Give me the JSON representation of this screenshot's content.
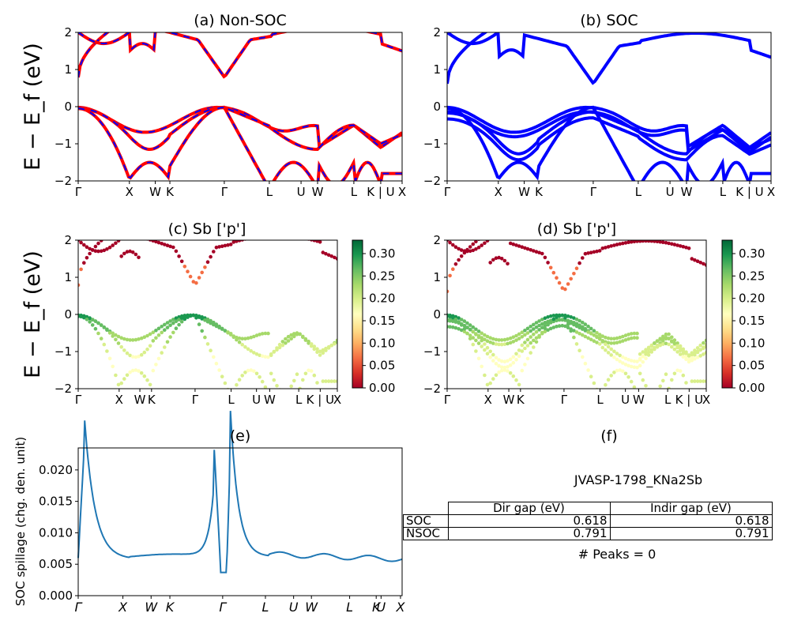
{
  "chart_data": [
    {
      "type": "line",
      "panel": "a",
      "title": "(a) Non-SOC",
      "ylabel": "E − E_f (eV)",
      "ylim": [
        -2,
        2
      ],
      "yticks": [
        "−2",
        "−1",
        "0",
        "1",
        "2"
      ],
      "xtick_labels": [
        "Γ",
        "X",
        "W",
        "K",
        "Γ",
        "L",
        "U",
        "W",
        "L",
        "K | U",
        "X"
      ],
      "x": [
        0,
        0.1,
        0.2,
        0.3,
        0.4,
        0.5,
        0.6,
        0.7,
        0.8,
        0.9,
        1.0,
        1.1,
        1.2,
        1.3,
        1.4,
        1.5,
        1.6,
        1.7,
        1.8,
        1.9,
        2.0,
        2.1,
        2.2,
        2.3,
        2.4,
        2.5,
        2.6,
        2.7,
        2.8,
        2.9,
        3.0,
        3.1,
        3.2,
        3.3,
        3.4,
        3.5,
        3.6,
        3.7,
        3.8,
        3.9,
        4.0,
        4.1,
        4.2,
        4.3,
        4.4,
        4.5,
        4.6,
        4.7,
        4.8,
        4.9,
        5.0,
        5.1,
        5.2,
        5.3,
        5.4,
        5.5,
        5.6,
        5.7,
        5.8,
        5.9,
        6.0,
        6.1,
        6.2,
        6.3,
        6.4,
        6.5,
        6.6,
        6.7,
        6.8,
        6.9,
        7.0,
        7.1,
        7.2,
        7.3,
        7.4,
        7.5,
        7.6,
        7.7,
        7.8,
        7.9,
        8.0,
        8.1,
        8.2,
        8.3,
        8.4,
        8.5,
        8.6,
        8.7,
        8.8,
        8.9,
        9.0,
        9.1,
        9.2,
        9.3,
        9.4,
        9.5,
        9.6,
        9.7,
        9.8,
        9.9,
        10.0,
        10.1,
        10.2,
        10.3,
        10.4,
        10.5,
        10.6,
        10.7,
        10.8,
        10.9,
        11.0,
        11.1,
        11.2,
        11.3,
        11.4,
        11.5,
        11.6,
        11.7,
        11.8,
        11.9,
        12.0,
        12.1,
        12.2,
        12.3,
        12.4,
        12.5,
        12.6,
        12.7,
        12.8,
        12.9,
        13.0,
        13.1,
        13.2,
        13.3,
        13.4,
        13.5,
        13.6,
        13.7,
        13.8,
        13.9,
        14.0,
        14.1,
        14.2,
        14.3,
        14.4,
        14.5,
        14.6,
        14.7,
        14.8,
        14.9,
        15.0,
        15.1,
        15.2,
        15.3,
        15.4,
        15.5,
        15.6,
        15.7,
        15.8,
        15.9,
        16.0,
        16.1,
        16.2,
        16.3,
        16.4,
        16.5,
        16.6,
        16.7,
        16.8,
        16.9,
        17.0,
        17.1,
        17.2,
        17.3,
        17.4,
        17.5,
        17.6,
        17.7,
        17.8,
        17.9,
        18.0,
        18.1,
        18.2,
        18.3,
        18.4,
        18.5,
        18.6,
        18.7,
        18.8,
        18.9,
        19.0,
        19.1,
        19.2,
        19.3,
        19.4,
        19.5,
        19.6,
        19.7,
        19.8,
        19.9,
        20.0,
        20.1,
        20.2,
        20.3,
        20.4,
        20.5,
        20.6,
        20.7,
        20.8,
        20.9,
        21.0,
        21.1,
        21.2,
        21.3,
        21.4,
        21.5,
        21.6,
        21.7,
        21.8,
        21.9,
        22.0,
        22.1,
        22.2,
        22.3,
        22.4,
        22.5,
        22.6,
        22.7,
        22.8,
        22.9,
        23.0,
        23.1,
        23.2,
        23.3,
        23.4,
        23.5,
        23.6,
        23.7,
        23.8,
        23.9,
        24.0,
        24.1,
        24.2,
        24.3,
        24.4,
        24.5,
        24.6,
        24.7,
        24.8,
        24.9,
        25.0,
        25.1,
        25.2,
        25.3,
        25.4,
        25.5,
        25.6,
        25.7,
        25.8,
        25.9,
        26.0,
        26.1,
        26.2,
        26.3,
        26.4,
        26.5,
        26.6,
        26.7,
        26.8,
        26.9,
        27.0,
        27.1,
        27.2,
        27.3,
        27.4,
        27.5,
        27.6,
        27.7,
        27.8,
        27.9,
        28.0,
        28.1,
        28.2,
        28.3,
        28.4,
        28.5,
        28.6,
        28.7,
        28.8,
        28.9,
        29.0,
        29.1,
        29.2,
        29.3,
        29.4,
        29.5,
        29.6,
        29.7,
        29.8,
        29.9,
        30.0,
        30.1,
        30.2,
        30.3,
        30.4,
        30.5,
        30.6,
        30.7,
        30.8,
        30.9,
        31.0,
        31.1,
        31.2,
        31.3,
        31.4,
        31.5,
        31.6,
        31.7,
        31.8,
        31.9,
        32.0,
        32.1,
        32.2,
        32.3,
        32.4,
        32.5,
        32.6,
        32.7,
        32.8,
        32.9,
        33.0,
        33.1,
        33.2,
        33.3,
        33.4,
        33.5,
        33.6,
        33.7,
        33.8,
        33.9,
        34.0,
        34.1,
        34.2,
        34.3,
        34.4,
        34.5,
        34.6,
        34.7,
        34.8,
        34.9,
        35.0,
        35.1,
        35.2,
        35.3,
        35.4,
        35.5,
        35.6,
        35.7,
        35.8,
        35.9,
        36.0,
        36.1,
        36.2,
        36.3,
        36.4,
        36.5,
        36.6,
        36.7,
        36.8,
        36.9,
        37.0,
        37.1,
        37.2,
        37.3,
        37.4,
        37.5,
        37.6,
        37.7,
        37.8,
        37.9,
        38.0,
        38.1,
        38.2,
        38.3,
        38.4,
        38.5,
        38.6,
        38.7,
        38.8,
        38.9,
        39.0,
        39.1,
        39.2,
        39.3,
        39.4,
        39.5,
        39.6,
        39.7,
        39.8,
        39.9,
        40.0,
        40.1,
        40.2,
        40.3,
        40.4,
        40.5,
        40.6,
        40.7,
        40.8,
        40.9,
        41.0,
        41.1,
        41.2,
        41.3,
        41.4,
        41.5,
        41.6,
        41.7,
        41.8,
        41.9,
        42.0,
        42.1,
        42.2,
        42.3,
        42.4,
        42.5,
        42.6,
        42.7,
        42.8,
        42.9,
        43.0,
        43.1,
        43.2,
        43.3,
        43.4,
        43.5,
        43.6,
        43.7,
        43.8,
        43.9,
        44.0,
        44.1,
        44.2,
        44.3,
        44.4,
        44.5,
        44.6,
        44.7,
        44.8,
        44.9,
        45.0
      ],
      "x_ticks_at": [
        0,
        6.5,
        9.75,
        11.6,
        18.5,
        24.2,
        28.2,
        30.3,
        34.9,
        38.3,
        41.0
      ],
      "series": []
    }
  ],
  "figure": {
    "panels": {
      "a": {
        "title": "(a) Non-SOC"
      },
      "b": {
        "title": "(b) SOC"
      },
      "c": {
        "title": "(c)  Sb ['p']"
      },
      "d": {
        "title": "(d) Sb ['p']"
      },
      "e": {
        "title": "(e)",
        "ylabel": "SOC spillage (chg. den. unit)"
      },
      "f": {
        "title": "(f)"
      }
    },
    "ylabel_bands": "E − E_f (eV)",
    "band_yticks": [
      "−2",
      "−1",
      "0",
      "1",
      "2"
    ],
    "band_xticks": [
      "Γ",
      "X",
      "W",
      "K",
      "Γ",
      "L",
      "U",
      "W",
      "L",
      "K | U",
      "X"
    ],
    "spillage_xticks": [
      "Γ",
      "X",
      "W",
      "K",
      "Γ",
      "L",
      "U",
      "W",
      "L",
      "K",
      "U",
      "X"
    ],
    "spillage_yticks": [
      "0.000",
      "0.005",
      "0.010",
      "0.015",
      "0.020"
    ],
    "colorbar_c_ticks": [
      "0.00",
      "0.05",
      "0.10",
      "0.15",
      "0.20",
      "0.25",
      "0.30"
    ],
    "colorbar_d_ticks": [
      "0.00",
      "0.05",
      "0.10",
      "0.15",
      "0.20",
      "0.25",
      "0.30"
    ],
    "table": {
      "title": "JVASP-1798_KNa2Sb",
      "headers": [
        "Dir gap (eV)",
        "Indir gap (eV)"
      ],
      "rows": [
        {
          "label": "SOC",
          "dir": "0.618",
          "indir": "0.618"
        },
        {
          "label": "NSOC",
          "dir": "0.791",
          "indir": "0.791"
        }
      ],
      "peaks": "# Peaks = 0"
    },
    "colors": {
      "nsoc_line": "#ff0000",
      "nsoc_dash": "#0000ff",
      "soc_line": "#0000ff",
      "spillage": "#1f77b4"
    }
  }
}
